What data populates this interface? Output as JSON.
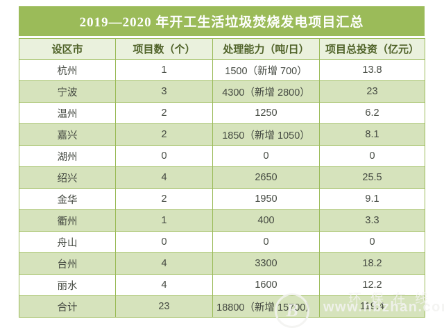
{
  "chart_data": {
    "type": "table",
    "title": "2019—2020 年开工生活垃圾焚烧发电项目汇总",
    "columns": [
      "设区市",
      "项目数（个）",
      "处理能力（吨/日）",
      "项目总投资（亿元）"
    ],
    "rows": [
      [
        "杭州",
        "1",
        "1500（新增 700）",
        "13.8"
      ],
      [
        "宁波",
        "3",
        "4300（新增 2800）",
        "23"
      ],
      [
        "温州",
        "2",
        "1250",
        "6.2"
      ],
      [
        "嘉兴",
        "2",
        "1850（新增 1050）",
        "8.1"
      ],
      [
        "湖州",
        "0",
        "0",
        "0"
      ],
      [
        "绍兴",
        "4",
        "2650",
        "25.5"
      ],
      [
        "金华",
        "2",
        "1950",
        "9.1"
      ],
      [
        "衢州",
        "1",
        "400",
        "3.3"
      ],
      [
        "舟山",
        "0",
        "0",
        "0"
      ],
      [
        "台州",
        "4",
        "3300",
        "18.2"
      ],
      [
        "丽水",
        "4",
        "1600",
        "12.2"
      ],
      [
        "合计",
        "23",
        "18800（新增 15700）",
        "119.4"
      ]
    ],
    "layout": {
      "striped": true,
      "stripe_on": "even-numbered-rows"
    }
  },
  "watermark": {
    "site_name": "环保在线",
    "url": "www.hbzhan.com",
    "logo_letter": "B"
  },
  "colors": {
    "title_bg": "#9BBB59",
    "title_text": "#FFFFFF",
    "header_bg": "#EAF1DD",
    "header_text": "#4F6228",
    "stripe_bg": "#D6E3BC",
    "row_bg": "#FFFFFF",
    "border": "#9BBB59",
    "body_text": "#454A42"
  }
}
